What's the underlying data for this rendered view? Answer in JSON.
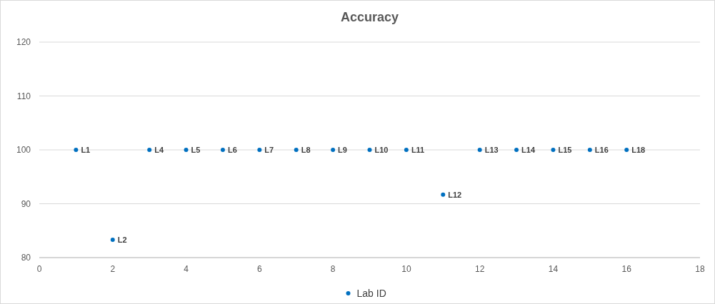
{
  "chart_data": {
    "type": "scatter",
    "title": "Accuracy",
    "x": [
      1,
      2,
      3,
      4,
      5,
      6,
      7,
      8,
      9,
      10,
      11,
      12,
      13,
      14,
      15,
      16
    ],
    "series": [
      {
        "name": "Lab ID",
        "color": "#0070c0",
        "values": [
          100,
          83.3,
          100,
          100,
          100,
          100,
          100,
          100,
          100,
          100,
          91.7,
          100,
          100,
          100,
          100,
          100
        ]
      }
    ],
    "xlim": [
      0,
      18
    ],
    "xticks": [
      0,
      2,
      4,
      6,
      8,
      10,
      12,
      14,
      16,
      18
    ],
    "ylim": [
      80,
      120
    ],
    "yticks": [
      80,
      90,
      100,
      110,
      120
    ],
    "grid": "y",
    "legend": "bottom",
    "marker": "circle",
    "annotations": [
      {
        "text": "L1",
        "x": 1,
        "y": 100
      },
      {
        "text": "L2",
        "x": 2,
        "y": 83.3
      },
      {
        "text": "L4",
        "x": 3,
        "y": 100
      },
      {
        "text": "L5",
        "x": 4,
        "y": 100
      },
      {
        "text": "L6",
        "x": 5,
        "y": 100
      },
      {
        "text": "L7",
        "x": 6,
        "y": 100
      },
      {
        "text": "L8",
        "x": 7,
        "y": 100
      },
      {
        "text": "L9",
        "x": 8,
        "y": 100
      },
      {
        "text": "L10",
        "x": 9,
        "y": 100
      },
      {
        "text": "L11",
        "x": 10,
        "y": 100
      },
      {
        "text": "L12",
        "x": 11,
        "y": 91.7
      },
      {
        "text": "L13",
        "x": 12,
        "y": 100
      },
      {
        "text": "L14",
        "x": 13,
        "y": 100
      },
      {
        "text": "L15",
        "x": 14,
        "y": 100
      },
      {
        "text": "L16",
        "x": 15,
        "y": 100
      },
      {
        "text": "L18",
        "x": 16,
        "y": 100
      }
    ]
  }
}
